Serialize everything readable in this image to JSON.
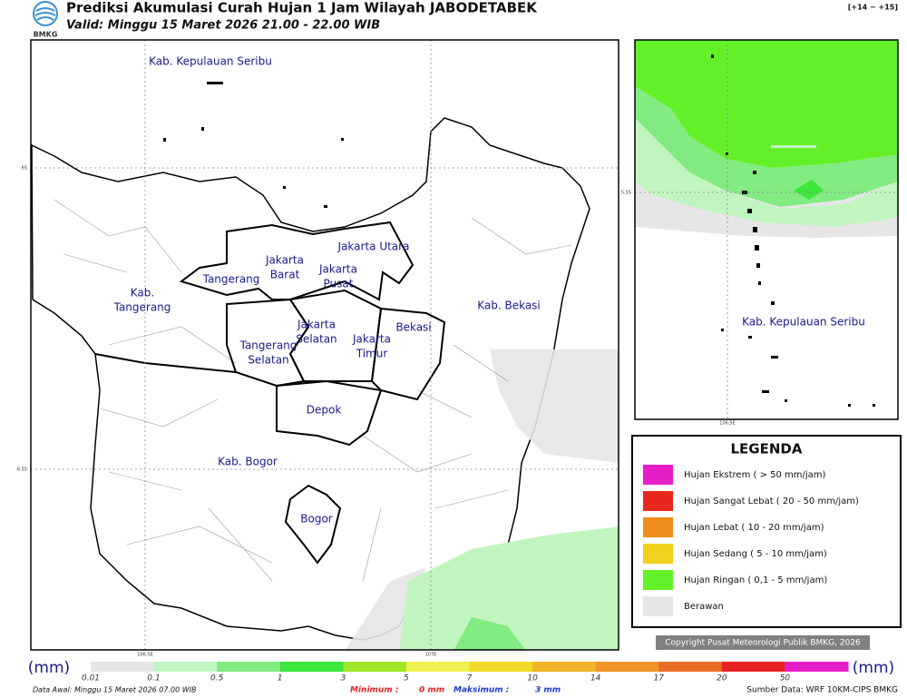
{
  "header": {
    "logo": "BMKG",
    "title": "Prediksi Akumulasi Curah Hujan 1 Jam Wilayah JABODETABEK",
    "valid": "Valid: Minggu 15 Maret 2026 21.00 - 22.00 WIB",
    "range": "[+14 ~ +15]"
  },
  "map": {
    "regions": [
      {
        "lines": [
          "Kab. Kepulauan Seribu"
        ]
      },
      {
        "lines": [
          "Jakarta Utara"
        ]
      },
      {
        "lines": [
          "Jakarta",
          "Barat"
        ]
      },
      {
        "lines": [
          "Jakarta",
          "Pusat"
        ]
      },
      {
        "lines": [
          "Tangerang"
        ]
      },
      {
        "lines": [
          "Kab.",
          "Tangerang"
        ]
      },
      {
        "lines": [
          "Jakarta",
          "Selatan"
        ]
      },
      {
        "lines": [
          "Jakarta",
          "Timur"
        ]
      },
      {
        "lines": [
          "Bekasi"
        ]
      },
      {
        "lines": [
          "Kab. Bekasi"
        ]
      },
      {
        "lines": [
          "Tangerang",
          "Selatan"
        ]
      },
      {
        "lines": [
          "Depok"
        ]
      },
      {
        "lines": [
          "Kab. Bogor"
        ]
      },
      {
        "lines": [
          "Bogor"
        ]
      }
    ],
    "lat_labels": [
      "6S",
      "6.5S"
    ],
    "lon_labels": [
      "106.5E",
      "107E"
    ]
  },
  "inset": {
    "region": "Kab. Kepulauan Seribu",
    "lat_label": "5.5S",
    "lon_label": "106.5E"
  },
  "legend": {
    "title": "LEGENDA",
    "items": [
      {
        "label": "Hujan Ekstrem ( > 50 mm/jam)",
        "color": "#e61ec8"
      },
      {
        "label": "Hujan Sangat Lebat ( 20 - 50 mm/jam)",
        "color": "#e8281e"
      },
      {
        "label": "Hujan Lebat ( 10 - 20 mm/jam)",
        "color": "#ef8c1e"
      },
      {
        "label": "Hujan Sedang ( 5 - 10 mm/jam)",
        "color": "#f0d21e"
      },
      {
        "label": "Hujan Ringan ( 0,1 - 5 mm/jam)",
        "color": "#64f028"
      },
      {
        "label": "Berawan",
        "color": "#e6e6e6"
      }
    ]
  },
  "copyright": "Copyright Pusat Meteorologi Publik BMKG, 2026",
  "colorbar": {
    "unit": "(mm)",
    "labels": [
      "0.01",
      "0.1",
      "0.5",
      "1",
      "3",
      "5",
      "7",
      "10",
      "14",
      "17",
      "20",
      "50"
    ],
    "colors": [
      "#e6e6e6",
      "#c0f5c0",
      "#82eb82",
      "#3ce63c",
      "#a0e628",
      "#f0f050",
      "#f0dc28",
      "#f0b428",
      "#f09628",
      "#e86e28",
      "#e62323",
      "#e61ec8"
    ]
  },
  "footer": {
    "data_awal": "Data Awal: Minggu 15 Maret 2026 07.00 WIB",
    "min_label": "Minimum :",
    "min_value": "0 mm",
    "max_label": "Maksimum :",
    "max_value": "3 mm",
    "source": "Sumber Data: WRF 10KM-CIPS BMKG"
  }
}
